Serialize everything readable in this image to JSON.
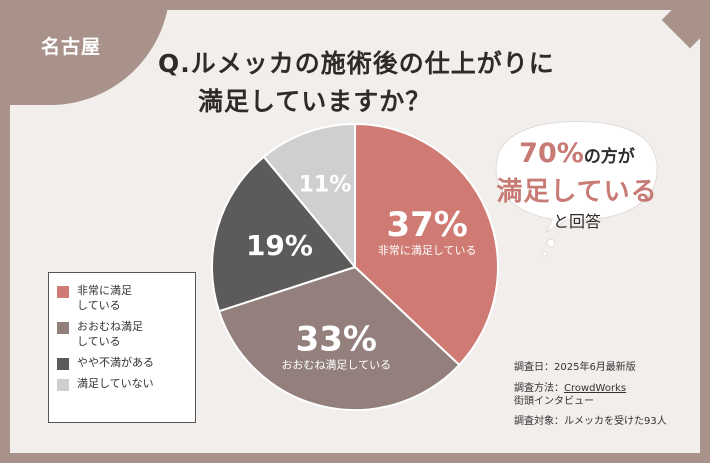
{
  "region_tag": "名古屋",
  "title_line1": "Q.ルメッカの施術後の仕上がりに",
  "title_line2": "満足していますか？",
  "chart_data": {
    "type": "pie",
    "categories": [
      "非常に満足している",
      "おおむね満足している",
      "やや不満がある",
      "満足していない"
    ],
    "values": [
      37,
      33,
      19,
      11
    ],
    "value_labels": [
      "37%",
      "33%",
      "19%",
      "11%"
    ],
    "colors": [
      "#cf7b74",
      "#93807d",
      "#5d5a5a",
      "#cfcfcf"
    ],
    "start": "12 o'clock, clockwise"
  },
  "legend": [
    {
      "label": "非常に満足\nしている",
      "color": "#cf7b74"
    },
    {
      "label": "おおむね満足\nしている",
      "color": "#93807d"
    },
    {
      "label": "やや不満がある",
      "color": "#5d5a5a"
    },
    {
      "label": "満足していない",
      "color": "#cfcfcf"
    }
  ],
  "bubble": {
    "pct": "70%",
    "pct_suffix": "の方が",
    "line2": "満足している",
    "line3": "と回答"
  },
  "info": {
    "date_line": "調査日：2025年6月最新版",
    "method_label": "調査方法：",
    "method_link": "CrowdWorks",
    "method_line2": "街頭インタビュー",
    "target_line": "調査対象：ルメッカを受けた93人"
  }
}
